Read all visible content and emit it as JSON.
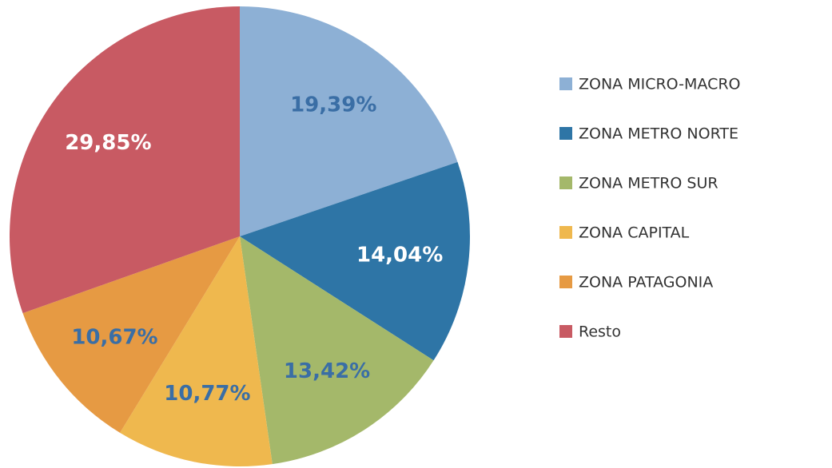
{
  "chart_data": {
    "type": "pie",
    "categories": [
      "ZONA MICRO-MACRO",
      "ZONA METRO NORTE",
      "ZONA METRO SUR",
      "ZONA CAPITAL",
      "ZONA PATAGONIA",
      "Resto"
    ],
    "values": [
      19.39,
      14.04,
      13.42,
      10.77,
      10.67,
      29.85
    ],
    "value_labels": [
      "19,39%",
      "14,04%",
      "13,42%",
      "10,77%",
      "10,67%",
      "29,85%"
    ],
    "colors": [
      "#8db0d5",
      "#2e75a6",
      "#a4b86a",
      "#efb84e",
      "#e69a43",
      "#c85a63"
    ],
    "label_colors": [
      "#3a6ea5",
      "#ffffff",
      "#3a6ea5",
      "#3a6ea5",
      "#3a6ea5",
      "#ffffff"
    ],
    "legend": "right"
  }
}
